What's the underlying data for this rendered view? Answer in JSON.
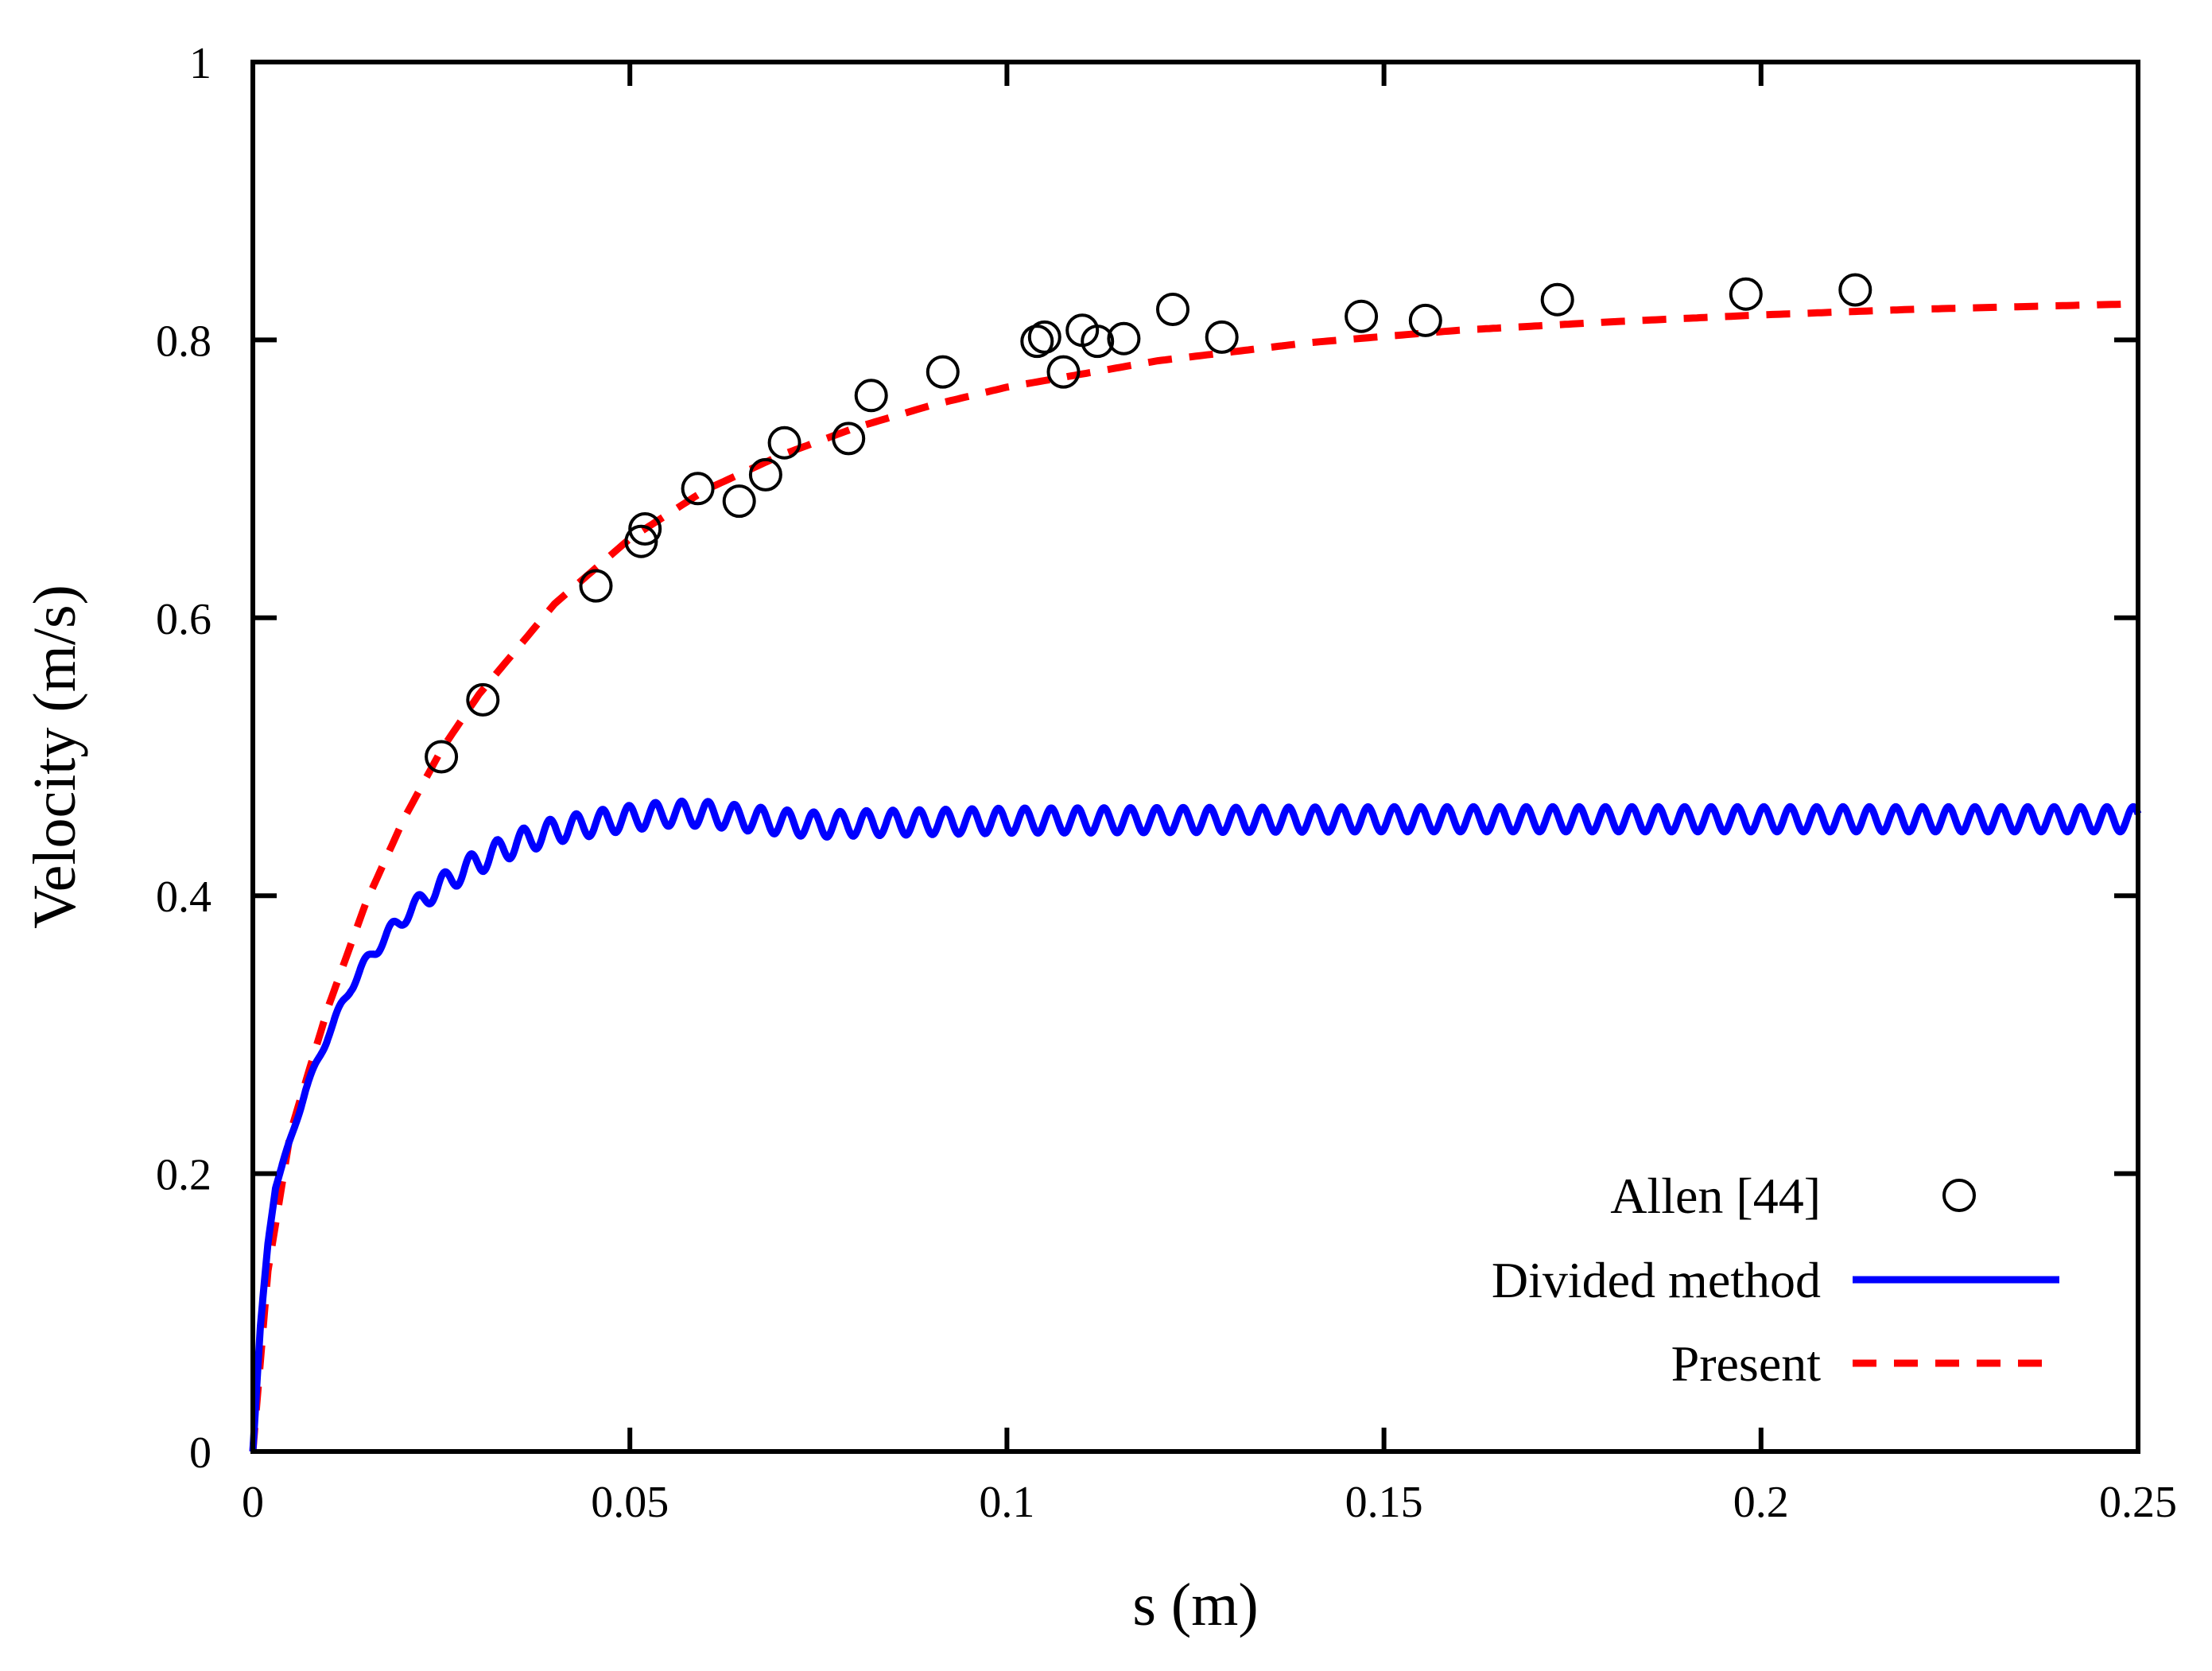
{
  "chart_data": {
    "type": "line",
    "title": "",
    "xlabel": "s (m)",
    "ylabel": "Velocity (m/s)",
    "xlim": [
      0,
      0.25
    ],
    "ylim": [
      0,
      1
    ],
    "grid": false,
    "legend_position": "bottom-right",
    "x_ticks": [
      0,
      0.05,
      0.1,
      0.15,
      0.2,
      0.25
    ],
    "x_tick_labels": [
      "0",
      "0.05",
      "0.1",
      "0.15",
      "0.2",
      "0.25"
    ],
    "y_ticks": [
      0,
      0.2,
      0.4,
      0.6,
      0.8,
      1
    ],
    "y_tick_labels": [
      "0",
      "0.2",
      "0.4",
      "0.6",
      "0.8",
      "1"
    ],
    "series": [
      {
        "name": "Allen [44]",
        "kind": "scatter",
        "marker": "open-circle",
        "color": "#000000",
        "x": [
          0.025,
          0.0305,
          0.0455,
          0.0515,
          0.052,
          0.059,
          0.0645,
          0.068,
          0.0705,
          0.079,
          0.082,
          0.0915,
          0.104,
          0.105,
          0.1075,
          0.11,
          0.112,
          0.1155,
          0.122,
          0.1285,
          0.147,
          0.1555,
          0.173,
          0.198,
          0.2125
        ],
        "y": [
          0.5,
          0.541,
          0.623,
          0.655,
          0.664,
          0.693,
          0.684,
          0.703,
          0.726,
          0.729,
          0.76,
          0.777,
          0.799,
          0.802,
          0.777,
          0.807,
          0.799,
          0.801,
          0.822,
          0.802,
          0.817,
          0.814,
          0.829,
          0.833,
          0.836
        ]
      },
      {
        "name": "Divided method",
        "kind": "line",
        "style": "solid",
        "color": "#0000ff",
        "x": [
          0,
          0.001,
          0.002,
          0.003,
          0.005,
          0.007,
          0.01,
          0.013,
          0.016,
          0.02,
          0.025,
          0.03,
          0.035,
          0.04,
          0.045,
          0.05,
          0.055,
          0.06,
          0.065,
          0.07,
          0.075,
          0.08,
          0.1,
          0.15,
          0.2,
          0.25
        ],
        "y": [
          0,
          0.09,
          0.15,
          0.19,
          0.225,
          0.26,
          0.3,
          0.335,
          0.36,
          0.385,
          0.408,
          0.425,
          0.438,
          0.447,
          0.452,
          0.456,
          0.459,
          0.459,
          0.456,
          0.453,
          0.451,
          0.452,
          0.454,
          0.455,
          0.455,
          0.455
        ],
        "oscillation": {
          "period": 0.0035,
          "amplitude": 0.009
        }
      },
      {
        "name": "Present",
        "kind": "line",
        "style": "dashed",
        "color": "#ff0000",
        "x": [
          0,
          0.002,
          0.005,
          0.01,
          0.015,
          0.02,
          0.025,
          0.03,
          0.04,
          0.05,
          0.06,
          0.07,
          0.08,
          0.09,
          0.1,
          0.12,
          0.14,
          0.16,
          0.18,
          0.2,
          0.22,
          0.25
        ],
        "y": [
          0,
          0.13,
          0.23,
          0.32,
          0.395,
          0.455,
          0.505,
          0.545,
          0.61,
          0.657,
          0.692,
          0.717,
          0.737,
          0.753,
          0.766,
          0.785,
          0.798,
          0.807,
          0.813,
          0.818,
          0.822,
          0.826
        ]
      }
    ]
  }
}
